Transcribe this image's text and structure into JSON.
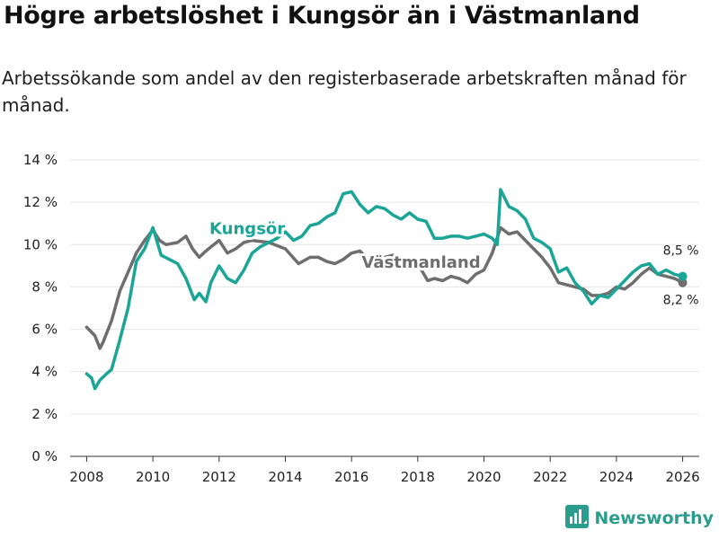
{
  "header": {
    "title": "Högre arbetslöshet i Kungsör än i Västmanland",
    "subtitle": "Arbetssökande som andel av den registerbaserade arbetskraften månad för månad."
  },
  "brand": {
    "name": "Newsworthy",
    "logo_icon": "bar-chart-logo-icon",
    "color": "#2a9d8f"
  },
  "chart_data": {
    "type": "line",
    "title": "Högre arbetslöshet i Kungsör än i Västmanland",
    "xlabel": "",
    "ylabel": "",
    "xlim": [
      2007.5,
      2026.5
    ],
    "ylim": [
      0,
      14
    ],
    "y_ticks": [
      0,
      2,
      4,
      6,
      8,
      10,
      12,
      14
    ],
    "y_tick_labels": [
      "0 %",
      "2 %",
      "4 %",
      "6 %",
      "8 %",
      "10 %",
      "12 %",
      "14 %"
    ],
    "x_ticks": [
      2008,
      2010,
      2012,
      2014,
      2016,
      2018,
      2020,
      2022,
      2024,
      2026
    ],
    "x_tick_labels": [
      "2008",
      "2010",
      "2012",
      "2014",
      "2016",
      "2018",
      "2020",
      "2022",
      "2024",
      "2026"
    ],
    "grid": true,
    "series": [
      {
        "name": "Västmanland",
        "color": "#6e6e6e",
        "label_position": "2018.1",
        "end_label": "8,2 %",
        "x": [
          2008.0,
          2008.25,
          2008.4,
          2008.5,
          2008.75,
          2009.0,
          2009.25,
          2009.5,
          2009.75,
          2010.0,
          2010.2,
          2010.4,
          2010.75,
          2011.0,
          2011.2,
          2011.4,
          2011.6,
          2012.0,
          2012.25,
          2012.5,
          2012.75,
          2013.0,
          2013.5,
          2014.0,
          2014.4,
          2014.75,
          2015.0,
          2015.25,
          2015.5,
          2015.75,
          2016.0,
          2016.25,
          2016.5,
          2016.75,
          2017.0,
          2017.25,
          2017.5,
          2017.75,
          2018.0,
          2018.3,
          2018.5,
          2018.75,
          2019.0,
          2019.25,
          2019.5,
          2019.75,
          2020.0,
          2020.25,
          2020.5,
          2020.75,
          2021.0,
          2021.25,
          2021.5,
          2021.75,
          2022.0,
          2022.25,
          2022.5,
          2022.75,
          2023.0,
          2023.25,
          2023.5,
          2023.75,
          2024.0,
          2024.25,
          2024.5,
          2024.75,
          2025.0,
          2025.25,
          2025.5,
          2025.75,
          2026.0
        ],
        "values": [
          6.1,
          5.7,
          5.1,
          5.4,
          6.4,
          7.8,
          8.7,
          9.6,
          10.2,
          10.7,
          10.2,
          10.0,
          10.1,
          10.4,
          9.8,
          9.4,
          9.7,
          10.2,
          9.6,
          9.8,
          10.1,
          10.2,
          10.1,
          9.8,
          9.1,
          9.4,
          9.4,
          9.2,
          9.1,
          9.3,
          9.6,
          9.7,
          9.3,
          9.1,
          9.4,
          9.5,
          9.1,
          9.2,
          9.1,
          8.3,
          8.4,
          8.3,
          8.5,
          8.4,
          8.2,
          8.6,
          8.8,
          9.6,
          10.8,
          10.5,
          10.6,
          10.2,
          9.8,
          9.4,
          8.9,
          8.2,
          8.1,
          8.0,
          7.9,
          7.6,
          7.6,
          7.7,
          8.0,
          7.9,
          8.2,
          8.6,
          8.9,
          8.6,
          8.5,
          8.4,
          8.2
        ]
      },
      {
        "name": "Kungsör",
        "color": "#1aa597",
        "label_position": "2012.85",
        "end_label": "8,5 %",
        "x": [
          2008.0,
          2008.15,
          2008.25,
          2008.4,
          2008.6,
          2008.75,
          2009.0,
          2009.25,
          2009.5,
          2009.75,
          2010.0,
          2010.25,
          2010.5,
          2010.75,
          2011.0,
          2011.25,
          2011.4,
          2011.6,
          2011.75,
          2012.0,
          2012.25,
          2012.5,
          2012.75,
          2013.0,
          2013.25,
          2013.5,
          2013.75,
          2014.0,
          2014.25,
          2014.5,
          2014.75,
          2015.0,
          2015.25,
          2015.5,
          2015.75,
          2016.0,
          2016.25,
          2016.5,
          2016.75,
          2017.0,
          2017.25,
          2017.5,
          2017.75,
          2018.0,
          2018.25,
          2018.5,
          2018.75,
          2019.0,
          2019.25,
          2019.5,
          2019.75,
          2020.0,
          2020.25,
          2020.4,
          2020.5,
          2020.75,
          2021.0,
          2021.25,
          2021.5,
          2021.75,
          2022.0,
          2022.25,
          2022.5,
          2022.75,
          2023.0,
          2023.25,
          2023.5,
          2023.75,
          2024.0,
          2024.25,
          2024.5,
          2024.75,
          2025.0,
          2025.25,
          2025.5,
          2025.75,
          2026.0
        ],
        "values": [
          3.9,
          3.7,
          3.2,
          3.6,
          3.9,
          4.1,
          5.5,
          7.0,
          9.2,
          9.8,
          10.8,
          9.5,
          9.3,
          9.1,
          8.4,
          7.4,
          7.7,
          7.3,
          8.2,
          9.0,
          8.4,
          8.2,
          8.8,
          9.6,
          9.9,
          10.1,
          10.3,
          10.6,
          10.2,
          10.4,
          10.9,
          11.0,
          11.3,
          11.5,
          12.4,
          12.5,
          11.9,
          11.5,
          11.8,
          11.7,
          11.4,
          11.2,
          11.5,
          11.2,
          11.1,
          10.3,
          10.3,
          10.4,
          10.4,
          10.3,
          10.4,
          10.5,
          10.3,
          10.0,
          12.6,
          11.8,
          11.6,
          11.2,
          10.3,
          10.1,
          9.8,
          8.7,
          8.9,
          8.2,
          7.8,
          7.2,
          7.6,
          7.5,
          7.9,
          8.3,
          8.7,
          9.0,
          9.1,
          8.6,
          8.8,
          8.6,
          8.5
        ]
      }
    ]
  }
}
